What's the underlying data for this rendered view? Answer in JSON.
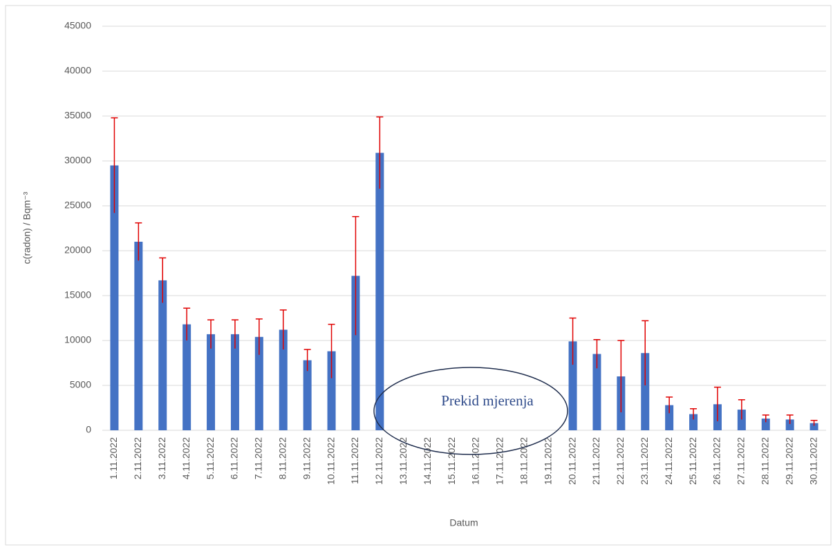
{
  "chart_data": {
    "type": "bar",
    "categories": [
      "1.11.2022",
      "2.11.2022",
      "3.11.2022",
      "4.11.2022",
      "5.11.2022",
      "6.11.2022",
      "7.11.2022",
      "8.11.2022",
      "9.11.2022",
      "10.11.2022",
      "11.11.2022",
      "12.11.2022",
      "13.11.2022",
      "14.11.2022",
      "15.11.2022",
      "16.11.2022",
      "17.11.2022",
      "18.11.2022",
      "19.11.2022",
      "20.11.2022",
      "21.11.2022",
      "22.11.2022",
      "23.11.2022",
      "24.11.2022",
      "25.11.2022",
      "26.11.2022",
      "27.11.2022",
      "28.11.2022",
      "29.11.2022",
      "30.11.2022"
    ],
    "values": [
      29500,
      21000,
      16700,
      11800,
      10700,
      10700,
      10400,
      11200,
      7800,
      8800,
      17200,
      30900,
      null,
      null,
      null,
      null,
      null,
      null,
      null,
      9900,
      8500,
      6000,
      8600,
      2800,
      1800,
      2900,
      2300,
      1300,
      1200,
      800
    ],
    "errors": [
      5300,
      2100,
      2500,
      1800,
      1600,
      1600,
      2000,
      2200,
      1200,
      3000,
      6600,
      4000,
      null,
      null,
      null,
      null,
      null,
      null,
      null,
      2600,
      1600,
      4000,
      3600,
      900,
      600,
      1900,
      1100,
      400,
      500,
      300
    ],
    "color": "#4472c4",
    "error_color": "#e00000",
    "ylim": [
      0,
      45000
    ],
    "yticks": [
      0,
      5000,
      10000,
      15000,
      20000,
      25000,
      30000,
      35000,
      40000,
      45000
    ],
    "grid": true,
    "ylabel": "c(radon) / Bqm⁻³",
    "xlabel": "Datum",
    "annotation": "Prekid mjerenja"
  }
}
